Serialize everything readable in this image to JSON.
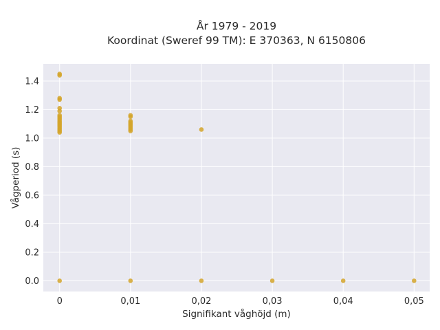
{
  "chart_data": {
    "type": "scatter",
    "title_lines": [
      "År 1979 - 2019",
      "Koordinat (Sweref 99 TM): E 370363, N 6150806"
    ],
    "xlabel": "Signifikant våghöjd (m)",
    "ylabel": "Vågperiod (s)",
    "xlim": [
      -0.0023,
      0.0522
    ],
    "ylim": [
      -0.075,
      1.52
    ],
    "xticks": [
      0,
      0.01,
      0.02,
      0.03,
      0.04,
      0.05
    ],
    "xtick_labels": [
      "0",
      "0,01",
      "0,02",
      "0,03",
      "0,04",
      "0,05"
    ],
    "yticks": [
      0,
      0.2,
      0.4,
      0.6,
      0.8,
      1.0,
      1.2,
      1.4
    ],
    "ytick_labels": [
      "0.0",
      "0.2",
      "0.4",
      "0.6",
      "0.8",
      "1.0",
      "1.2",
      "1.4"
    ],
    "grid": true,
    "marker_color": "#d4a52a",
    "background_color": "#e9e9f1",
    "series": [
      {
        "points": [
          {
            "x": 0,
            "y": 0.0
          },
          {
            "x": 0.01,
            "y": 0.0
          },
          {
            "x": 0.02,
            "y": 0.0
          },
          {
            "x": 0.03,
            "y": 0.0
          },
          {
            "x": 0.04,
            "y": 0.0
          },
          {
            "x": 0.05,
            "y": 0.0
          },
          {
            "x": 0,
            "y": 1.45
          },
          {
            "x": 0,
            "y": 1.44
          },
          {
            "x": 0,
            "y": 1.28
          },
          {
            "x": 0,
            "y": 1.27
          },
          {
            "x": 0,
            "y": 1.21
          },
          {
            "x": 0,
            "y": 1.19
          },
          {
            "x": 0,
            "y": 1.16
          },
          {
            "x": 0,
            "y": 1.15
          },
          {
            "x": 0,
            "y": 1.14
          },
          {
            "x": 0,
            "y": 1.13
          },
          {
            "x": 0,
            "y": 1.12
          },
          {
            "x": 0,
            "y": 1.11
          },
          {
            "x": 0,
            "y": 1.1
          },
          {
            "x": 0,
            "y": 1.09
          },
          {
            "x": 0,
            "y": 1.08
          },
          {
            "x": 0,
            "y": 1.07
          },
          {
            "x": 0,
            "y": 1.06
          },
          {
            "x": 0,
            "y": 1.05
          },
          {
            "x": 0,
            "y": 1.04
          },
          {
            "x": 0.01,
            "y": 1.16
          },
          {
            "x": 0.01,
            "y": 1.15
          },
          {
            "x": 0.01,
            "y": 1.12
          },
          {
            "x": 0.01,
            "y": 1.11
          },
          {
            "x": 0.01,
            "y": 1.1
          },
          {
            "x": 0.01,
            "y": 1.09
          },
          {
            "x": 0.01,
            "y": 1.08
          },
          {
            "x": 0.01,
            "y": 1.07
          },
          {
            "x": 0.01,
            "y": 1.06
          },
          {
            "x": 0.01,
            "y": 1.05
          },
          {
            "x": 0.02,
            "y": 1.06
          }
        ]
      }
    ]
  }
}
